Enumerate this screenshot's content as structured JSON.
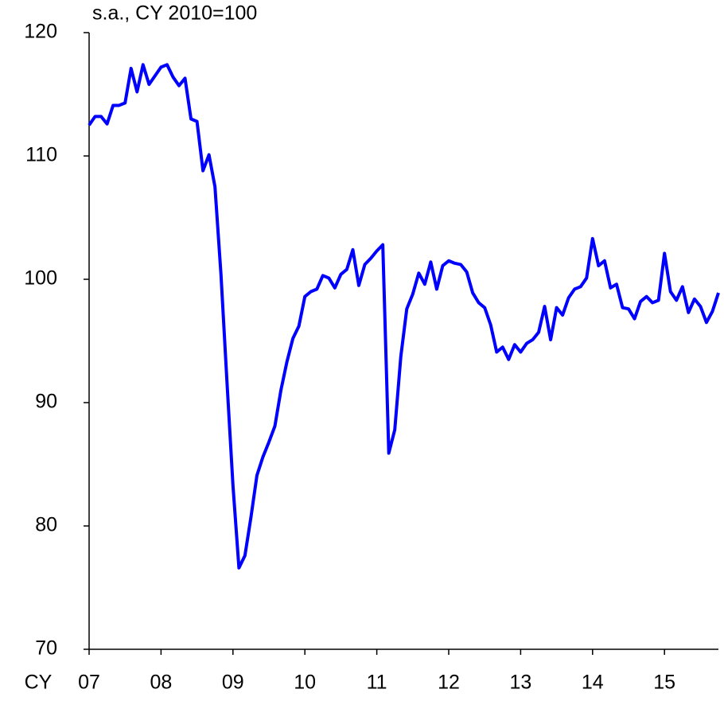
{
  "chart_data": {
    "type": "line",
    "subtitle": "s.a., CY 2010=100",
    "x_label": "CY",
    "x": [
      0,
      1,
      2,
      3,
      4,
      5,
      6,
      7,
      8,
      9,
      10,
      11,
      12,
      13,
      14,
      15,
      16,
      17,
      18,
      19,
      20,
      21,
      22,
      23,
      24,
      25,
      26,
      27,
      28,
      29,
      30,
      31,
      32,
      33,
      34,
      35,
      36,
      37,
      38,
      39,
      40,
      41,
      42,
      43,
      44,
      45,
      46,
      47,
      48,
      49,
      50,
      51,
      52,
      53,
      54,
      55,
      56,
      57,
      58,
      59,
      60,
      61,
      62,
      63,
      64,
      65,
      66,
      67,
      68,
      69,
      70,
      71,
      72,
      73,
      74,
      75,
      76,
      77,
      78,
      79,
      80,
      81,
      82,
      83,
      84,
      85,
      86,
      87,
      88,
      89,
      90,
      91,
      92,
      93,
      94,
      95,
      96,
      97,
      98,
      99,
      100,
      101,
      102,
      103,
      104,
      105
    ],
    "series": [
      {
        "color": "#0000ff",
        "values": [
          112.5,
          113.2,
          113.2,
          112.6,
          114.1,
          114.1,
          114.3,
          117.1,
          115.2,
          117.4,
          115.8,
          116.5,
          117.2,
          117.4,
          116.4,
          115.7,
          116.3,
          113.0,
          112.8,
          108.8,
          110.1,
          107.5,
          100.4,
          91.7,
          83.3,
          76.6,
          77.6,
          80.7,
          84.1,
          85.6,
          86.8,
          88.1,
          91.0,
          93.3,
          95.2,
          96.2,
          98.6,
          99.0,
          99.2,
          100.3,
          100.1,
          99.3,
          100.4,
          100.8,
          102.4,
          99.5,
          101.2,
          101.7,
          102.3,
          102.8,
          85.9,
          87.8,
          93.7,
          97.6,
          98.8,
          100.5,
          99.6,
          101.4,
          99.2,
          101.1,
          101.5,
          101.3,
          101.2,
          100.6,
          98.9,
          98.1,
          97.7,
          96.3,
          94.1,
          94.5,
          93.5,
          94.7,
          94.1,
          94.8,
          95.1,
          95.7,
          97.8,
          95.1,
          97.7,
          97.1,
          98.5,
          99.2,
          99.4,
          100.1,
          103.3,
          101.1,
          101.5,
          99.3,
          99.6,
          97.7,
          97.6,
          96.8,
          98.2,
          98.6,
          98.1,
          98.3,
          102.1,
          99.0,
          98.3,
          99.4,
          97.3,
          98.4,
          97.8,
          96.5,
          97.4,
          98.9
        ]
      }
    ],
    "xlim": [
      0,
      105
    ],
    "xticks": [
      {
        "value": 0,
        "label": "07"
      },
      {
        "value": 12,
        "label": "08"
      },
      {
        "value": 24,
        "label": "09"
      },
      {
        "value": 36,
        "label": "10"
      },
      {
        "value": 48,
        "label": "11"
      },
      {
        "value": 60,
        "label": "12"
      },
      {
        "value": 72,
        "label": "13"
      },
      {
        "value": 84,
        "label": "14"
      },
      {
        "value": 96,
        "label": "15"
      }
    ],
    "ylim": [
      70,
      120
    ],
    "yticks": [
      70,
      80,
      90,
      100,
      110,
      120
    ],
    "grid": false
  }
}
